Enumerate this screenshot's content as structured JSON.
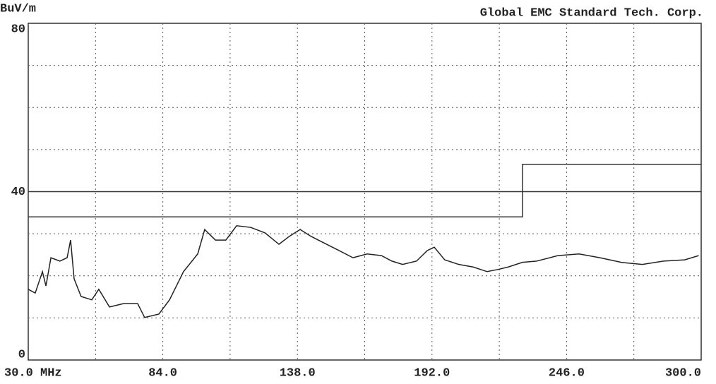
{
  "chart_data": {
    "type": "line",
    "unit_label": "BuV/m",
    "title": "Global EMC Standard Tech. Corp.",
    "xlim": [
      30,
      300
    ],
    "ylim": [
      0,
      80
    ],
    "xticks": [
      {
        "value": 30,
        "label": "30.0 MHz"
      },
      {
        "value": 84,
        "label": "84.0"
      },
      {
        "value": 138,
        "label": "138.0"
      },
      {
        "value": 192,
        "label": "192.0"
      },
      {
        "value": 246,
        "label": "246.0"
      },
      {
        "value": 300,
        "label": "300.0"
      }
    ],
    "yticks": [
      0,
      40,
      80
    ],
    "xgrid": [
      57,
      84,
      111,
      138,
      165,
      192,
      219,
      246,
      273
    ],
    "ygrid": [
      10,
      20,
      30,
      40,
      50,
      60,
      70
    ],
    "grid": true,
    "series": [
      {
        "color": "#333333",
        "x": [
          30,
          228.3,
          228.3,
          300
        ],
        "values": [
          40,
          40,
          46.5,
          46.5
        ]
      },
      {
        "color": "#333333",
        "x": [
          30,
          228.3,
          228.3,
          300
        ],
        "values": [
          34,
          34,
          40,
          40
        ]
      },
      {
        "color": "#222222",
        "x": [
          30,
          32.8,
          35.7,
          37.1,
          39.1,
          42.7,
          45.6,
          47,
          48.4,
          51.2,
          55.5,
          58.3,
          62.6,
          68.2,
          73.9,
          76.7,
          82.4,
          86.7,
          92.3,
          98,
          100.8,
          105.1,
          109.3,
          113.6,
          119.3,
          125,
          130.6,
          134.8,
          139.1,
          143.4,
          149,
          154.7,
          160.3,
          166,
          171.7,
          175.9,
          180.2,
          185.8,
          190.1,
          192.9,
          197.1,
          202.8,
          208.5,
          214.1,
          218.4,
          222.6,
          228.3,
          234,
          242.5,
          251,
          259.4,
          267.9,
          276.4,
          284.9,
          293.4,
          299
        ],
        "values": [
          16.8,
          15.9,
          21,
          17.6,
          24.3,
          23.5,
          24.3,
          28.5,
          19.3,
          15.1,
          14.3,
          16.8,
          12.6,
          13.4,
          13.4,
          10.1,
          10.9,
          14.3,
          21,
          25.2,
          31,
          28.5,
          28.5,
          31.9,
          31.5,
          30.2,
          27.5,
          29.4,
          31,
          29.4,
          27.7,
          26,
          24.3,
          25.2,
          24.8,
          23.5,
          22.7,
          23.5,
          26,
          26.8,
          23.8,
          22.7,
          22.1,
          21,
          21.5,
          22.1,
          23.2,
          23.5,
          24.8,
          25.2,
          24.3,
          23.2,
          22.7,
          23.5,
          23.8,
          24.8
        ]
      }
    ]
  }
}
